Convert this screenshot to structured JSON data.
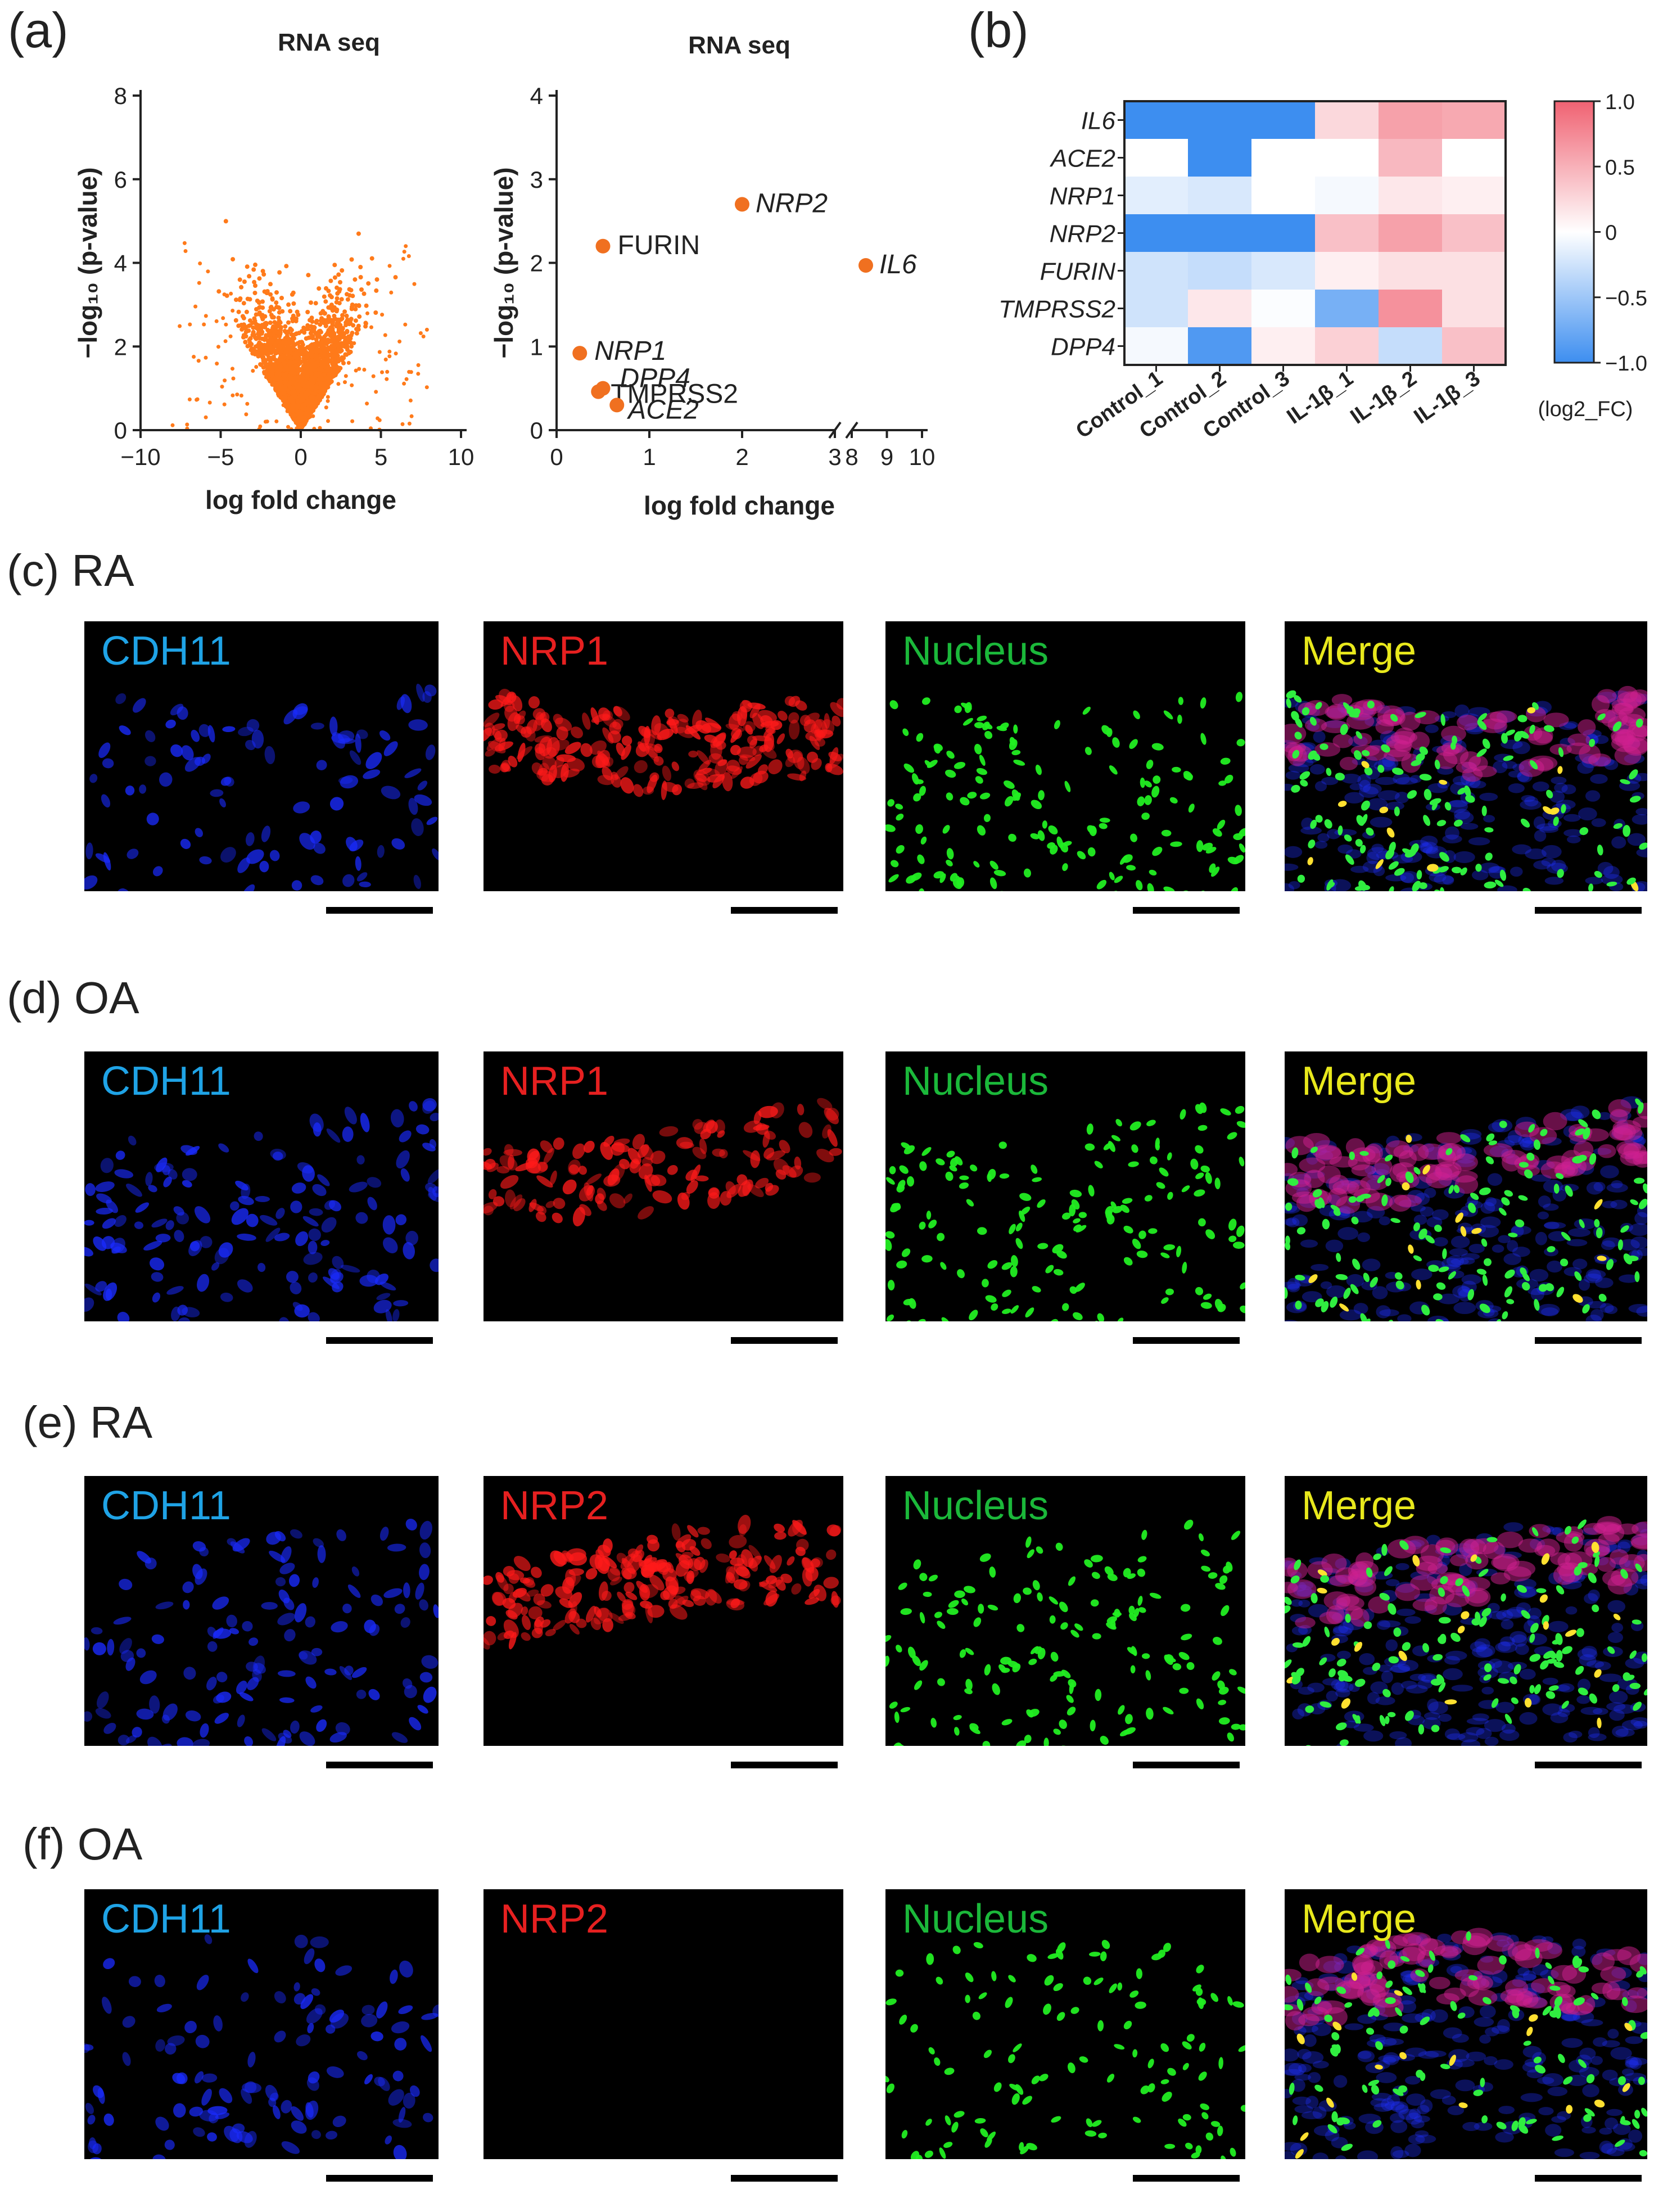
{
  "panels": {
    "a": "(a)",
    "b": "(b)",
    "c": "(c) RA",
    "d": "(d) OA",
    "e": "(e) RA",
    "f": "(f) OA"
  },
  "chart_data": [
    {
      "type": "scatter",
      "title": "RNA seq",
      "xlabel": "log fold change",
      "ylabel": "−log₁₀ (p-value)",
      "xlim": [
        -10,
        10
      ],
      "ylim": [
        0,
        8
      ],
      "xticks": [
        "−10",
        "−5",
        "0",
        "5",
        "10"
      ],
      "yticks": [
        "0",
        "2",
        "4",
        "6",
        "8"
      ],
      "color": "#ff7a1a",
      "grid": false
    },
    {
      "type": "scatter",
      "title": "RNA seq",
      "xlabel": "log fold change",
      "ylabel": "−log₁₀ (p-value)",
      "xlim": [
        0,
        10
      ],
      "x_axis_break": [
        3,
        8
      ],
      "ylim": [
        0,
        4
      ],
      "xticks": [
        "0",
        "1",
        "2",
        "3",
        "8",
        "9",
        "10"
      ],
      "yticks": [
        "0",
        "1",
        "2",
        "3",
        "4"
      ],
      "color": "#f07020",
      "points": [
        {
          "label": "NRP2",
          "x": 2.0,
          "y": 2.7,
          "italic": true
        },
        {
          "label": "FURIN",
          "x": 0.5,
          "y": 2.2,
          "italic": false
        },
        {
          "label": "IL6",
          "x": 8.4,
          "y": 1.97,
          "italic": true
        },
        {
          "label": "NRP1",
          "x": 0.25,
          "y": 0.92,
          "italic": true
        },
        {
          "label": "DPP4",
          "x": 0.5,
          "y": 0.5,
          "italic": true
        },
        {
          "label": "TMPRSS2",
          "x": 0.45,
          "y": 0.46,
          "italic": false
        },
        {
          "label": "ACE2",
          "x": 0.65,
          "y": 0.3,
          "italic": true
        }
      ]
    },
    {
      "type": "heatmap",
      "rows": [
        "IL6",
        "ACE2",
        "NRP1",
        "NRP2",
        "FURIN",
        "TMPRSS2",
        "DPP4"
      ],
      "columns": [
        "Control_1",
        "Control_2",
        "Control_3",
        "IL-1β_1",
        "IL-1β_2",
        "IL-1β_3"
      ],
      "values": [
        [
          -1.0,
          -1.0,
          -1.0,
          0.25,
          0.6,
          0.55
        ],
        [
          0.0,
          -1.0,
          0.0,
          0.0,
          0.45,
          0.0
        ],
        [
          -0.15,
          -0.2,
          0.0,
          -0.05,
          0.15,
          0.1
        ],
        [
          -1.0,
          -1.0,
          -1.0,
          0.4,
          0.6,
          0.4
        ],
        [
          -0.25,
          -0.3,
          -0.2,
          0.1,
          0.2,
          0.2
        ],
        [
          -0.25,
          0.15,
          -0.02,
          -0.7,
          0.7,
          0.2
        ],
        [
          -0.05,
          -0.9,
          0.1,
          0.3,
          -0.3,
          0.4
        ]
      ],
      "colorbar_ticks": [
        "1.0",
        "0.5",
        "0",
        "−0.5",
        "−1.0"
      ],
      "colorbar_label": "(log2_FC)",
      "colorscale": {
        "low": "#3d8ef0",
        "mid": "#ffffff",
        "high": "#f06272"
      }
    }
  ],
  "rows": [
    {
      "label_key": "c",
      "labels": [
        "CDH11",
        "NRP1",
        "Nucleus",
        "Merge"
      ],
      "intensity": [
        0.5,
        1.0,
        1.0,
        1.0
      ]
    },
    {
      "label_key": "d",
      "labels": [
        "CDH11",
        "NRP1",
        "Nucleus",
        "Merge"
      ],
      "intensity": [
        0.7,
        0.6,
        1.0,
        1.0
      ]
    },
    {
      "label_key": "e",
      "labels": [
        "CDH11",
        "NRP2",
        "Nucleus",
        "Merge"
      ],
      "intensity": [
        0.6,
        0.9,
        1.0,
        1.0
      ]
    },
    {
      "label_key": "f",
      "labels": [
        "CDH11",
        "NRP2",
        "Nucleus",
        "Merge"
      ],
      "intensity": [
        0.5,
        0.0,
        0.7,
        0.8
      ]
    }
  ],
  "channel_colors": {
    "CDH11": "#1fa3e6",
    "NRP": "#e62020",
    "Nucleus": "#1bb83a",
    "Merge": "#e8e81c"
  }
}
